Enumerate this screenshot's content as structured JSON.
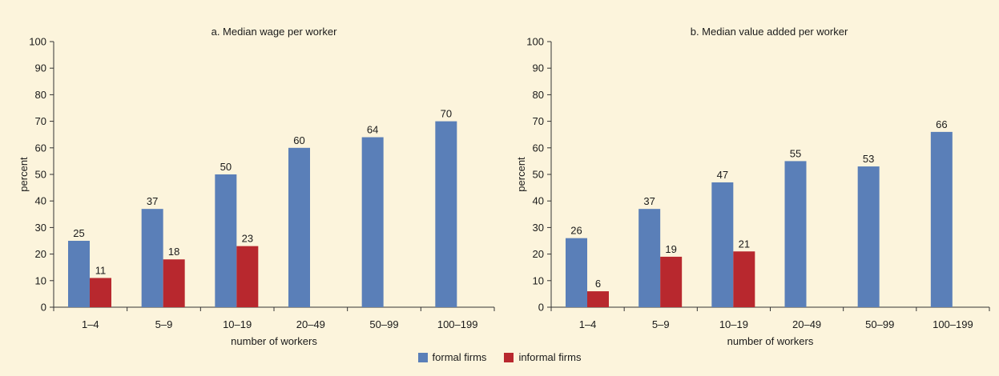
{
  "colors": {
    "background": "#fcf4dc",
    "formal": "#5a7fb8",
    "informal": "#b8282e"
  },
  "legend": {
    "formal": "formal firms",
    "informal": "informal firms"
  },
  "chart_data": [
    {
      "type": "bar",
      "title": "a. Median wage per worker",
      "xlabel": "number of workers",
      "ylabel": "percent",
      "ylim": [
        0,
        100
      ],
      "yticks": [
        0,
        10,
        20,
        30,
        40,
        50,
        60,
        70,
        80,
        90,
        100
      ],
      "categories": [
        "1–4",
        "5–9",
        "10–19",
        "20–49",
        "50–99",
        "100–199"
      ],
      "series": [
        {
          "name": "formal firms",
          "values": [
            25,
            37,
            50,
            60,
            64,
            70
          ]
        },
        {
          "name": "informal firms",
          "values": [
            11,
            18,
            23,
            null,
            null,
            null
          ]
        }
      ]
    },
    {
      "type": "bar",
      "title": "b. Median value added per worker",
      "xlabel": "number of workers",
      "ylabel": "percent",
      "ylim": [
        0,
        100
      ],
      "yticks": [
        0,
        10,
        20,
        30,
        40,
        50,
        60,
        70,
        80,
        90,
        100
      ],
      "categories": [
        "1–4",
        "5–9",
        "10–19",
        "20–49",
        "50–99",
        "100–199"
      ],
      "series": [
        {
          "name": "formal firms",
          "values": [
            26,
            37,
            47,
            55,
            53,
            66
          ]
        },
        {
          "name": "informal firms",
          "values": [
            6,
            19,
            21,
            null,
            null,
            null
          ]
        }
      ]
    }
  ]
}
